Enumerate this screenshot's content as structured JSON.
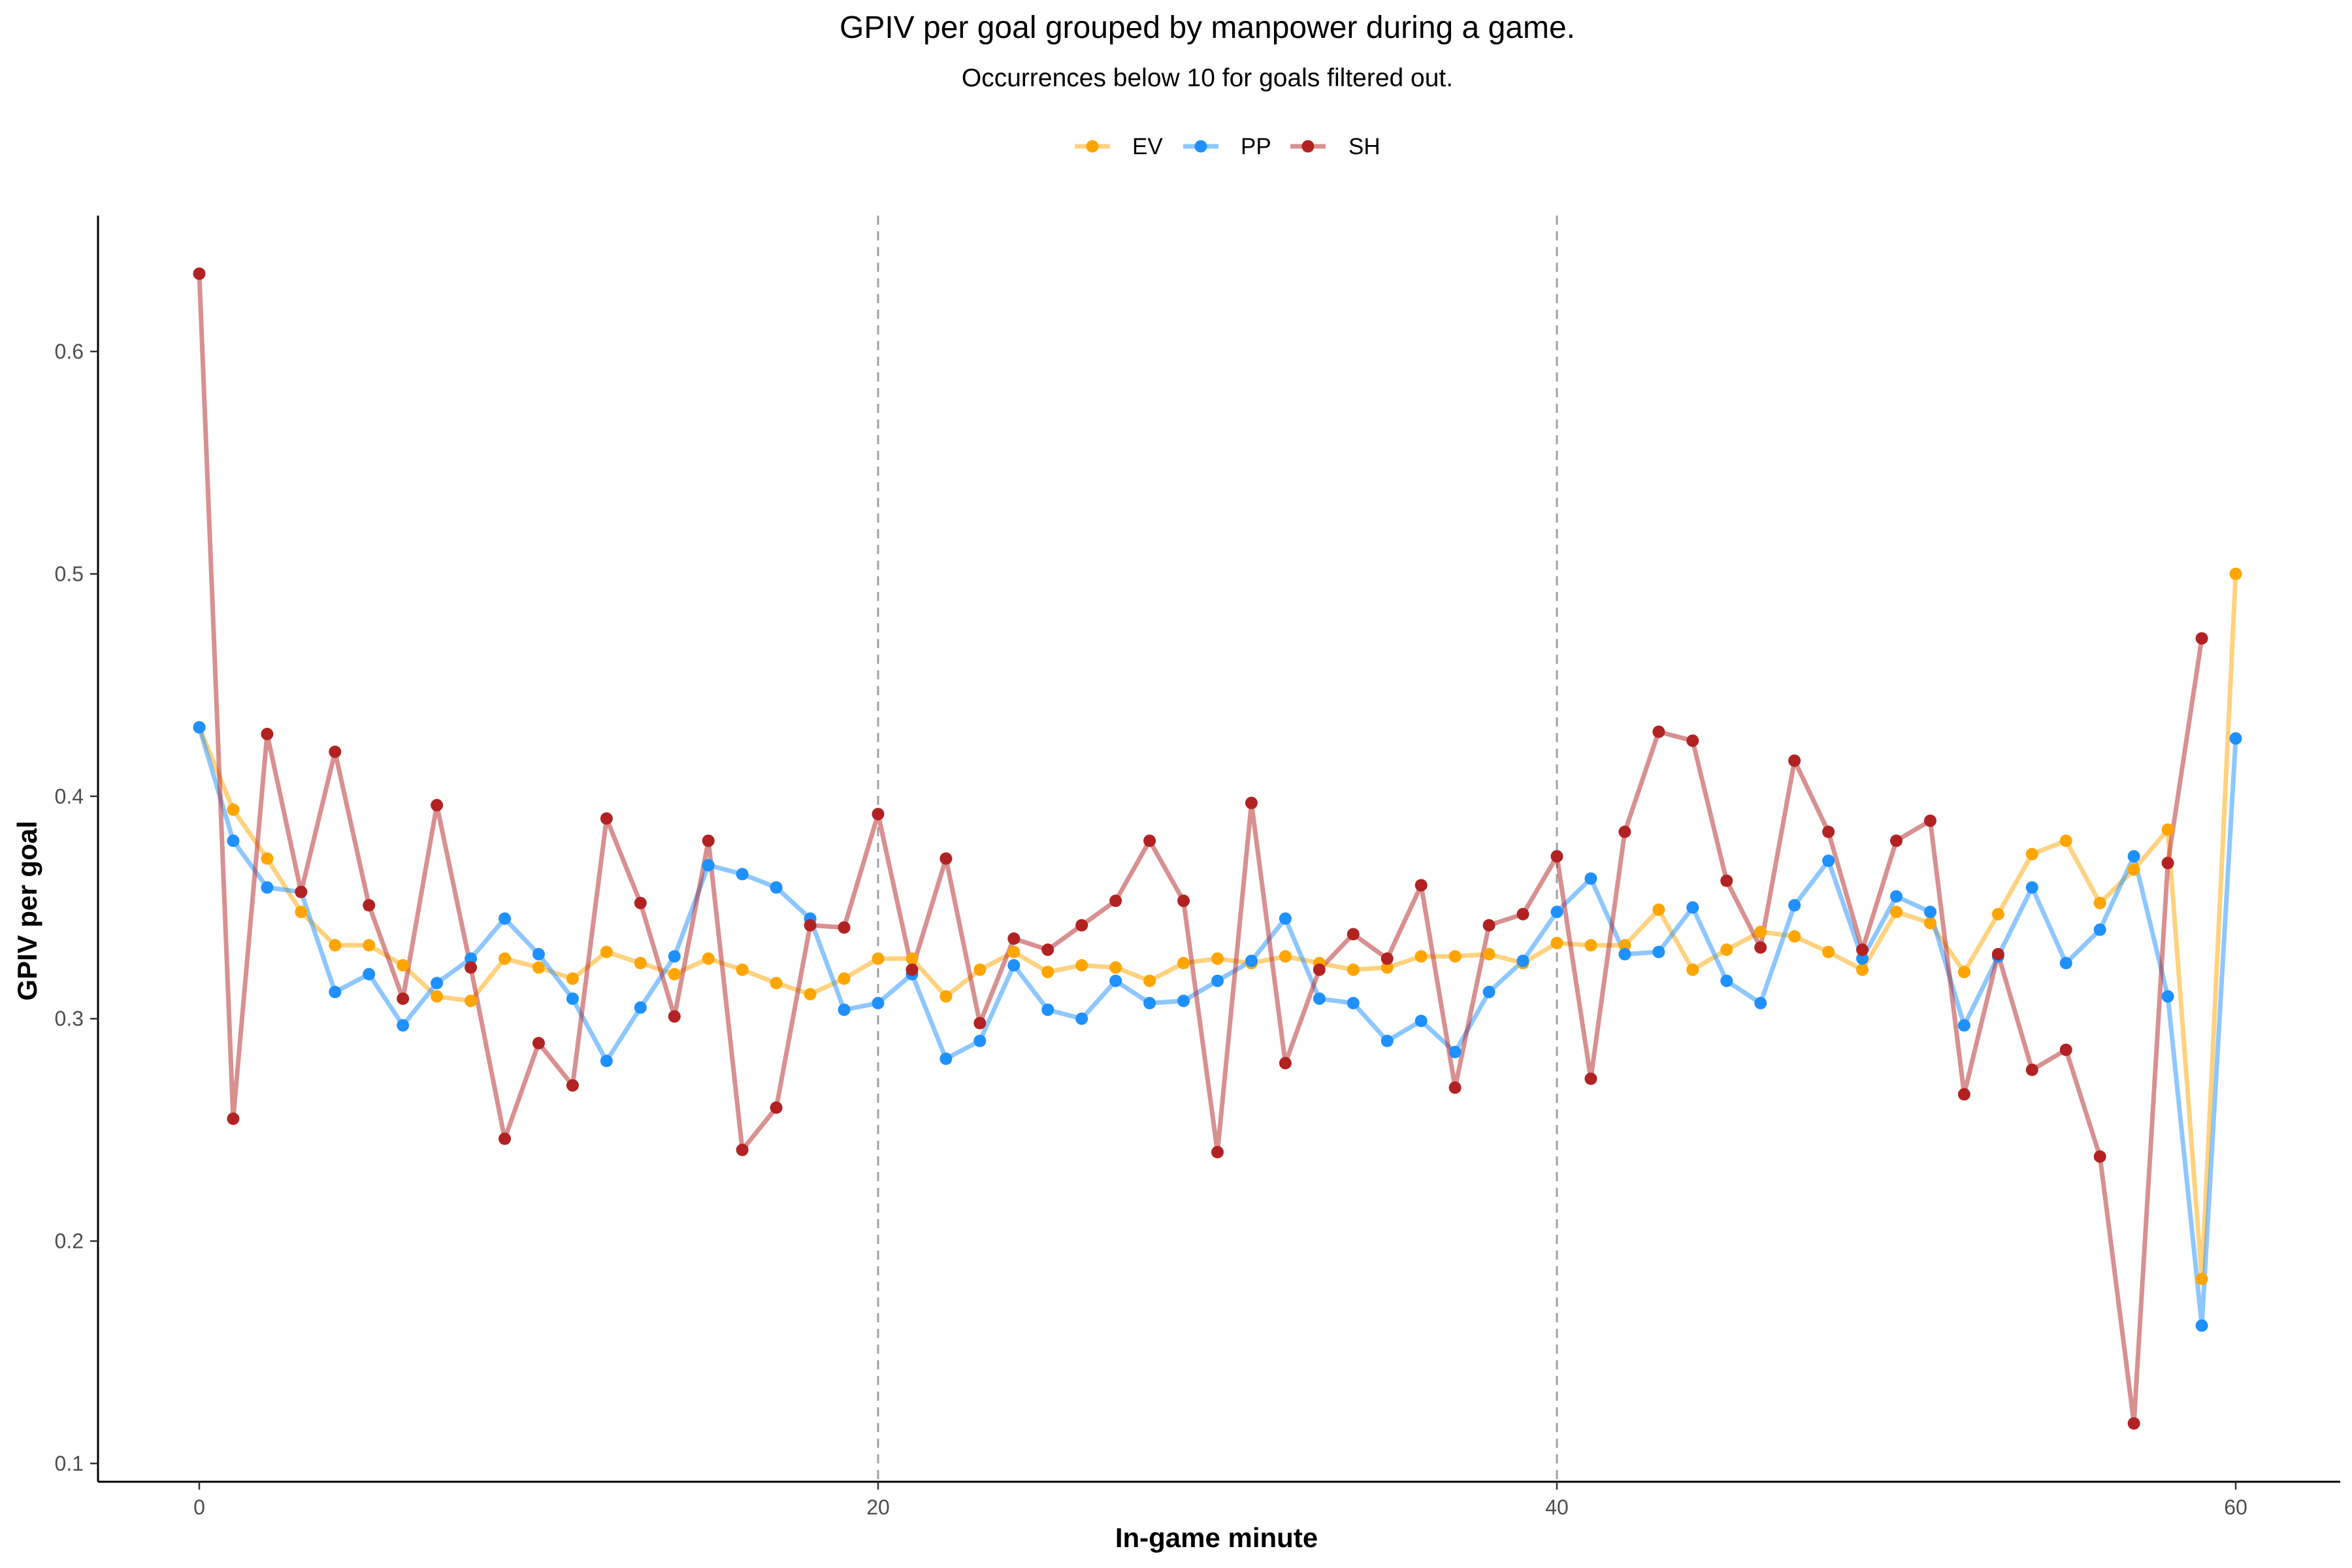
{
  "chart_data": {
    "type": "line",
    "title": "GPIV per goal grouped by manpower during a game.",
    "subtitle": "Occurrences below 10 for goals filtered out.",
    "xlabel": "In-game minute",
    "ylabel": "GPIV per goal",
    "xlim": [
      -3,
      63
    ],
    "ylim": [
      0.092,
      0.661
    ],
    "x_ticks": [
      0,
      20,
      40,
      60
    ],
    "y_ticks": [
      0.1,
      0.2,
      0.3,
      0.4,
      0.5,
      0.6
    ],
    "reference_lines_x": [
      20,
      40
    ],
    "grid": false,
    "legend_position": "top",
    "series": [
      {
        "name": "EV",
        "color": "#FFA500",
        "x": [
          0,
          1,
          2,
          3,
          4,
          5,
          6,
          7,
          8,
          9,
          10,
          11,
          12,
          13,
          14,
          15,
          16,
          17,
          18,
          19,
          20,
          21,
          22,
          23,
          24,
          25,
          26,
          27,
          28,
          29,
          30,
          31,
          32,
          33,
          34,
          35,
          36,
          37,
          38,
          39,
          40,
          41,
          42,
          43,
          44,
          45,
          46,
          47,
          48,
          49,
          50,
          51,
          52,
          53,
          54,
          55,
          56,
          57,
          58,
          59,
          60
        ],
        "values": [
          0.431,
          0.394,
          0.372,
          0.348,
          0.333,
          0.333,
          0.324,
          0.31,
          0.308,
          0.327,
          0.323,
          0.318,
          0.33,
          0.325,
          0.32,
          0.327,
          0.322,
          0.316,
          0.311,
          0.318,
          0.327,
          0.327,
          0.31,
          0.322,
          0.33,
          0.321,
          0.324,
          0.323,
          0.317,
          0.325,
          0.327,
          0.325,
          0.328,
          0.325,
          0.322,
          0.323,
          0.328,
          0.328,
          0.329,
          0.325,
          0.334,
          0.333,
          0.333,
          0.349,
          0.322,
          0.331,
          0.339,
          0.337,
          0.33,
          0.322,
          0.348,
          0.343,
          0.321,
          0.347,
          0.374,
          0.38,
          0.352,
          0.367,
          0.385,
          0.183,
          0.5
        ]
      },
      {
        "name": "PP",
        "color": "#1E90FF",
        "x": [
          0,
          1,
          2,
          3,
          4,
          5,
          6,
          7,
          8,
          9,
          10,
          11,
          12,
          13,
          14,
          15,
          16,
          17,
          18,
          19,
          20,
          21,
          22,
          23,
          24,
          25,
          26,
          27,
          28,
          29,
          30,
          31,
          32,
          33,
          34,
          35,
          36,
          37,
          38,
          39,
          40,
          41,
          42,
          43,
          44,
          45,
          46,
          47,
          48,
          49,
          50,
          51,
          52,
          53,
          54,
          55,
          56,
          57,
          58,
          59,
          60
        ],
        "values": [
          0.431,
          0.38,
          0.359,
          0.357,
          0.312,
          0.32,
          0.297,
          0.316,
          0.327,
          0.345,
          0.329,
          0.309,
          0.281,
          0.305,
          0.328,
          0.369,
          0.365,
          0.359,
          0.345,
          0.304,
          0.307,
          0.32,
          0.282,
          0.29,
          0.324,
          0.304,
          0.3,
          0.317,
          0.307,
          0.308,
          0.317,
          0.326,
          0.345,
          0.309,
          0.307,
          0.29,
          0.299,
          0.285,
          0.312,
          0.326,
          0.348,
          0.363,
          0.329,
          0.33,
          0.35,
          0.317,
          0.307,
          0.351,
          0.371,
          0.327,
          0.355,
          0.348,
          0.297,
          0.328,
          0.359,
          0.325,
          0.34,
          0.373,
          0.31,
          0.162,
          0.426
        ]
      },
      {
        "name": "SH",
        "color": "#B22222",
        "x": [
          0,
          1,
          2,
          3,
          4,
          5,
          6,
          7,
          8,
          9,
          10,
          11,
          12,
          13,
          14,
          15,
          16,
          17,
          18,
          19,
          20,
          21,
          22,
          23,
          24,
          25,
          26,
          27,
          28,
          29,
          30,
          31,
          32,
          33,
          34,
          35,
          36,
          37,
          38,
          39,
          40,
          41,
          42,
          43,
          44,
          45,
          46,
          47,
          48,
          49,
          50,
          51,
          52,
          53,
          54,
          55,
          56,
          57,
          58,
          59
        ],
        "values": [
          0.635,
          0.255,
          0.428,
          0.357,
          0.42,
          0.351,
          0.309,
          0.396,
          0.323,
          0.246,
          0.289,
          0.27,
          0.39,
          0.352,
          0.301,
          0.38,
          0.241,
          0.26,
          0.342,
          0.341,
          0.392,
          0.322,
          0.372,
          0.298,
          0.336,
          0.331,
          0.342,
          0.353,
          0.38,
          0.353,
          0.24,
          0.397,
          0.28,
          0.322,
          0.338,
          0.327,
          0.36,
          0.269,
          0.342,
          0.347,
          0.373,
          0.273,
          0.384,
          0.429,
          0.425,
          0.362,
          0.332,
          0.416,
          0.384,
          0.331,
          0.38,
          0.389,
          0.266,
          0.329,
          0.277,
          0.286,
          0.238,
          0.118,
          0.37,
          0.471
        ]
      }
    ]
  }
}
